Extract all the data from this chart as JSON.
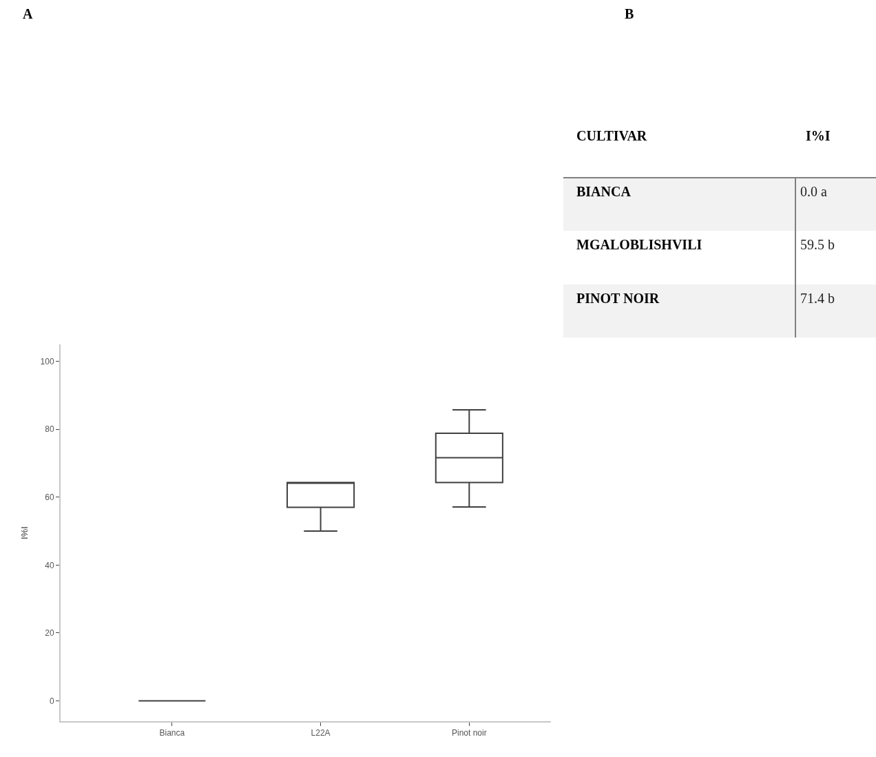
{
  "chart_data": [
    {
      "type": "box",
      "title": "A",
      "ylabel": "I%I",
      "categories": [
        "Bianca",
        "L22A",
        "Pinot noir"
      ],
      "color": "#404040",
      "boxes": [
        {
          "low": 0,
          "q1": 0,
          "median": 0,
          "q3": 0,
          "high": 0
        },
        {
          "low": 50,
          "q1": 57,
          "median": 64.3,
          "q3": 64.3,
          "high": 64.3
        },
        {
          "low": 57.1,
          "q1": 64.3,
          "median": 71.6,
          "q3": 78.8,
          "high": 85.7
        }
      ],
      "ylim": [
        -6,
        105
      ],
      "yticks": [
        0,
        20,
        40,
        60,
        80,
        100
      ]
    },
    {
      "type": "other",
      "title": "B",
      "annotations": [
        "CULTIVAR",
        "I%I"
      ],
      "categories": [
        "BIANCA",
        "MGALOBLISHVILI",
        "PINOT NOIR"
      ],
      "value_labels": [
        "0.0 a",
        "59.5 b",
        "71.4 b"
      ]
    }
  ]
}
